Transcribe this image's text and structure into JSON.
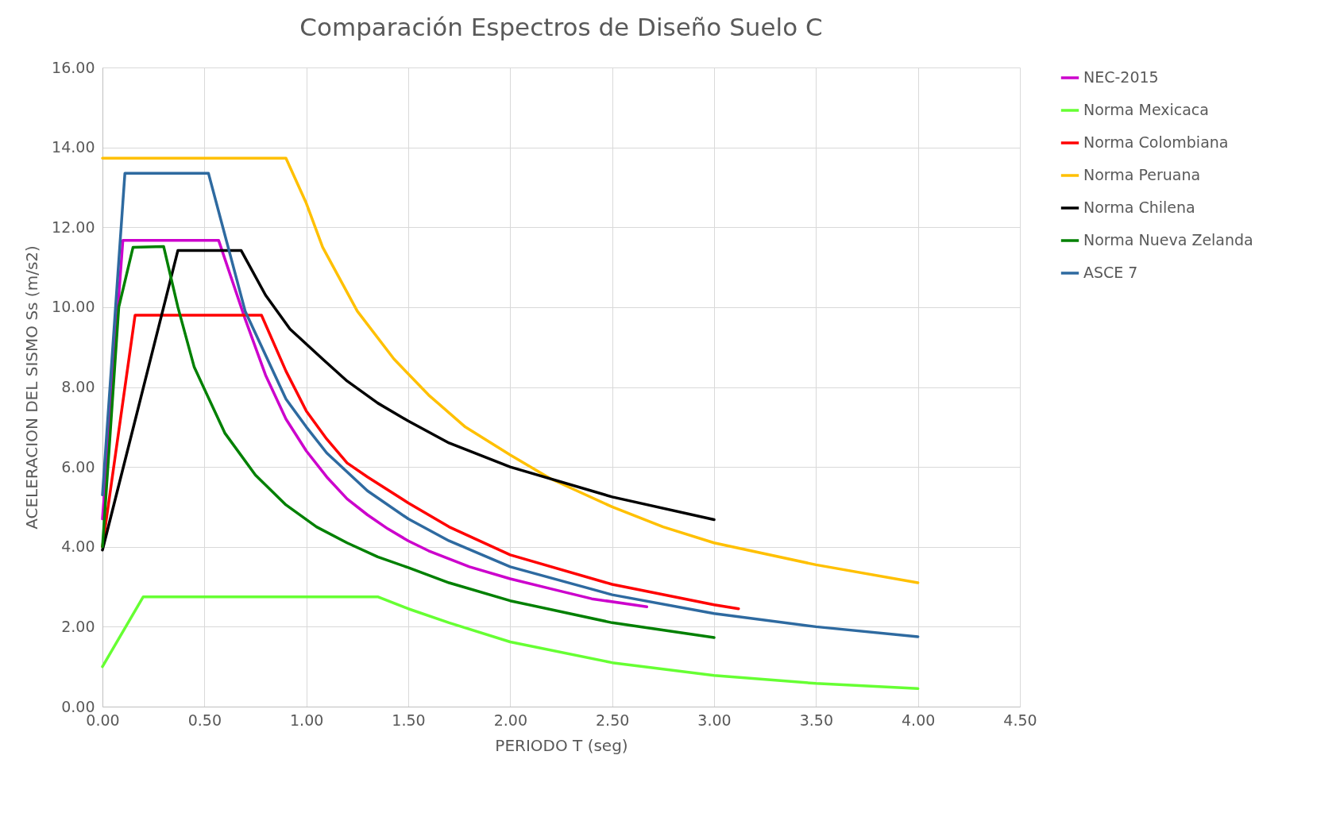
{
  "chart_data": {
    "type": "line",
    "title": "Comparación Espectros de Diseño Suelo C",
    "xlabel": "PERIODO T (seg)",
    "ylabel": "ACELERACION DEL SISMO Ss (m/s2)",
    "xlim": [
      0,
      4.5
    ],
    "xticks": [
      {
        "value": 0,
        "label": "0.00"
      },
      {
        "value": 0.5,
        "label": "0.50"
      },
      {
        "value": 1,
        "label": "1.00"
      },
      {
        "value": 1.5,
        "label": "1.50"
      },
      {
        "value": 2,
        "label": "2.00"
      },
      {
        "value": 2.5,
        "label": "2.50"
      },
      {
        "value": 3,
        "label": "3.00"
      },
      {
        "value": 3.5,
        "label": "3.50"
      },
      {
        "value": 4,
        "label": "4.00"
      },
      {
        "value": 4.5,
        "label": "4.50"
      }
    ],
    "ylim": [
      0,
      16
    ],
    "yticks": [
      {
        "value": 0,
        "label": "0.00"
      },
      {
        "value": 2,
        "label": "2.00"
      },
      {
        "value": 4,
        "label": "4.00"
      },
      {
        "value": 6,
        "label": "6.00"
      },
      {
        "value": 8,
        "label": "8.00"
      },
      {
        "value": 10,
        "label": "10.00"
      },
      {
        "value": 12,
        "label": "12.00"
      },
      {
        "value": 14,
        "label": "14.00"
      },
      {
        "value": 16,
        "label": "16.00"
      }
    ],
    "grid": true,
    "legend": "right",
    "marker": "none",
    "line_style": "solid",
    "series": [
      {
        "name": "NEC-2015",
        "color": "#cc00cc",
        "x": [
          0,
          0.1,
          0.57,
          0.7,
          0.8,
          0.9,
          1.0,
          1.1,
          1.2,
          1.3,
          1.4,
          1.5,
          1.6,
          1.8,
          2.0,
          2.2,
          2.4,
          2.67
        ],
        "values": [
          4.7,
          11.67,
          11.67,
          9.7,
          8.3,
          7.2,
          6.4,
          5.75,
          5.2,
          4.8,
          4.45,
          4.15,
          3.9,
          3.5,
          3.2,
          2.95,
          2.7,
          2.5
        ]
      },
      {
        "name": "Norma Mexicaca",
        "color": "#66ff33",
        "x": [
          0,
          0.2,
          1.35,
          1.5,
          1.7,
          2.0,
          2.5,
          3.0,
          3.5,
          4.0
        ],
        "values": [
          1.0,
          2.75,
          2.75,
          2.45,
          2.1,
          1.62,
          1.1,
          0.78,
          0.58,
          0.45
        ]
      },
      {
        "name": "Norma Colombiana",
        "color": "#ff0000",
        "x": [
          0,
          0.16,
          0.78,
          0.9,
          1.0,
          1.1,
          1.2,
          1.3,
          1.5,
          1.7,
          2.0,
          2.5,
          3.0,
          3.12
        ],
        "values": [
          4.0,
          9.8,
          9.8,
          8.4,
          7.4,
          6.7,
          6.1,
          5.75,
          5.1,
          4.5,
          3.8,
          3.06,
          2.55,
          2.45
        ]
      },
      {
        "name": "Norma Peruana",
        "color": "#ffc000",
        "x": [
          0,
          0.9,
          1.0,
          1.08,
          1.25,
          1.43,
          1.6,
          1.78,
          2.0,
          2.2,
          2.5,
          2.75,
          3.0,
          3.5,
          4.0
        ],
        "values": [
          13.73,
          13.73,
          12.6,
          11.5,
          9.9,
          8.7,
          7.8,
          7.0,
          6.3,
          5.7,
          5.0,
          4.5,
          4.1,
          3.55,
          3.1
        ]
      },
      {
        "name": "Norma Chilena",
        "color": "#000000",
        "x": [
          0,
          0.37,
          0.68,
          0.8,
          0.92,
          1.08,
          1.2,
          1.35,
          1.5,
          1.7,
          2.0,
          2.5,
          3.0
        ],
        "values": [
          3.92,
          11.42,
          11.42,
          10.3,
          9.45,
          8.7,
          8.15,
          7.6,
          7.15,
          6.6,
          6.0,
          5.25,
          4.68
        ]
      },
      {
        "name": "Norma Nueva Zelanda",
        "color": "#008000",
        "x": [
          0,
          0.08,
          0.15,
          0.3,
          0.37,
          0.45,
          0.6,
          0.75,
          0.9,
          1.05,
          1.2,
          1.35,
          1.5,
          1.7,
          2.0,
          2.5,
          3.0
        ],
        "values": [
          4.0,
          10.0,
          11.5,
          11.52,
          10.0,
          8.5,
          6.85,
          5.8,
          5.05,
          4.5,
          4.1,
          3.75,
          3.48,
          3.1,
          2.65,
          2.1,
          1.73
        ]
      },
      {
        "name": "ASCE 7",
        "color": "#2e6aa0",
        "x": [
          0,
          0.11,
          0.52,
          0.7,
          0.9,
          1.0,
          1.1,
          1.3,
          1.5,
          1.7,
          2.0,
          2.5,
          3.0,
          3.5,
          4.0
        ],
        "values": [
          5.3,
          13.35,
          13.35,
          9.9,
          7.7,
          7.0,
          6.35,
          5.4,
          4.7,
          4.15,
          3.5,
          2.8,
          2.33,
          2.0,
          1.75
        ]
      }
    ]
  }
}
